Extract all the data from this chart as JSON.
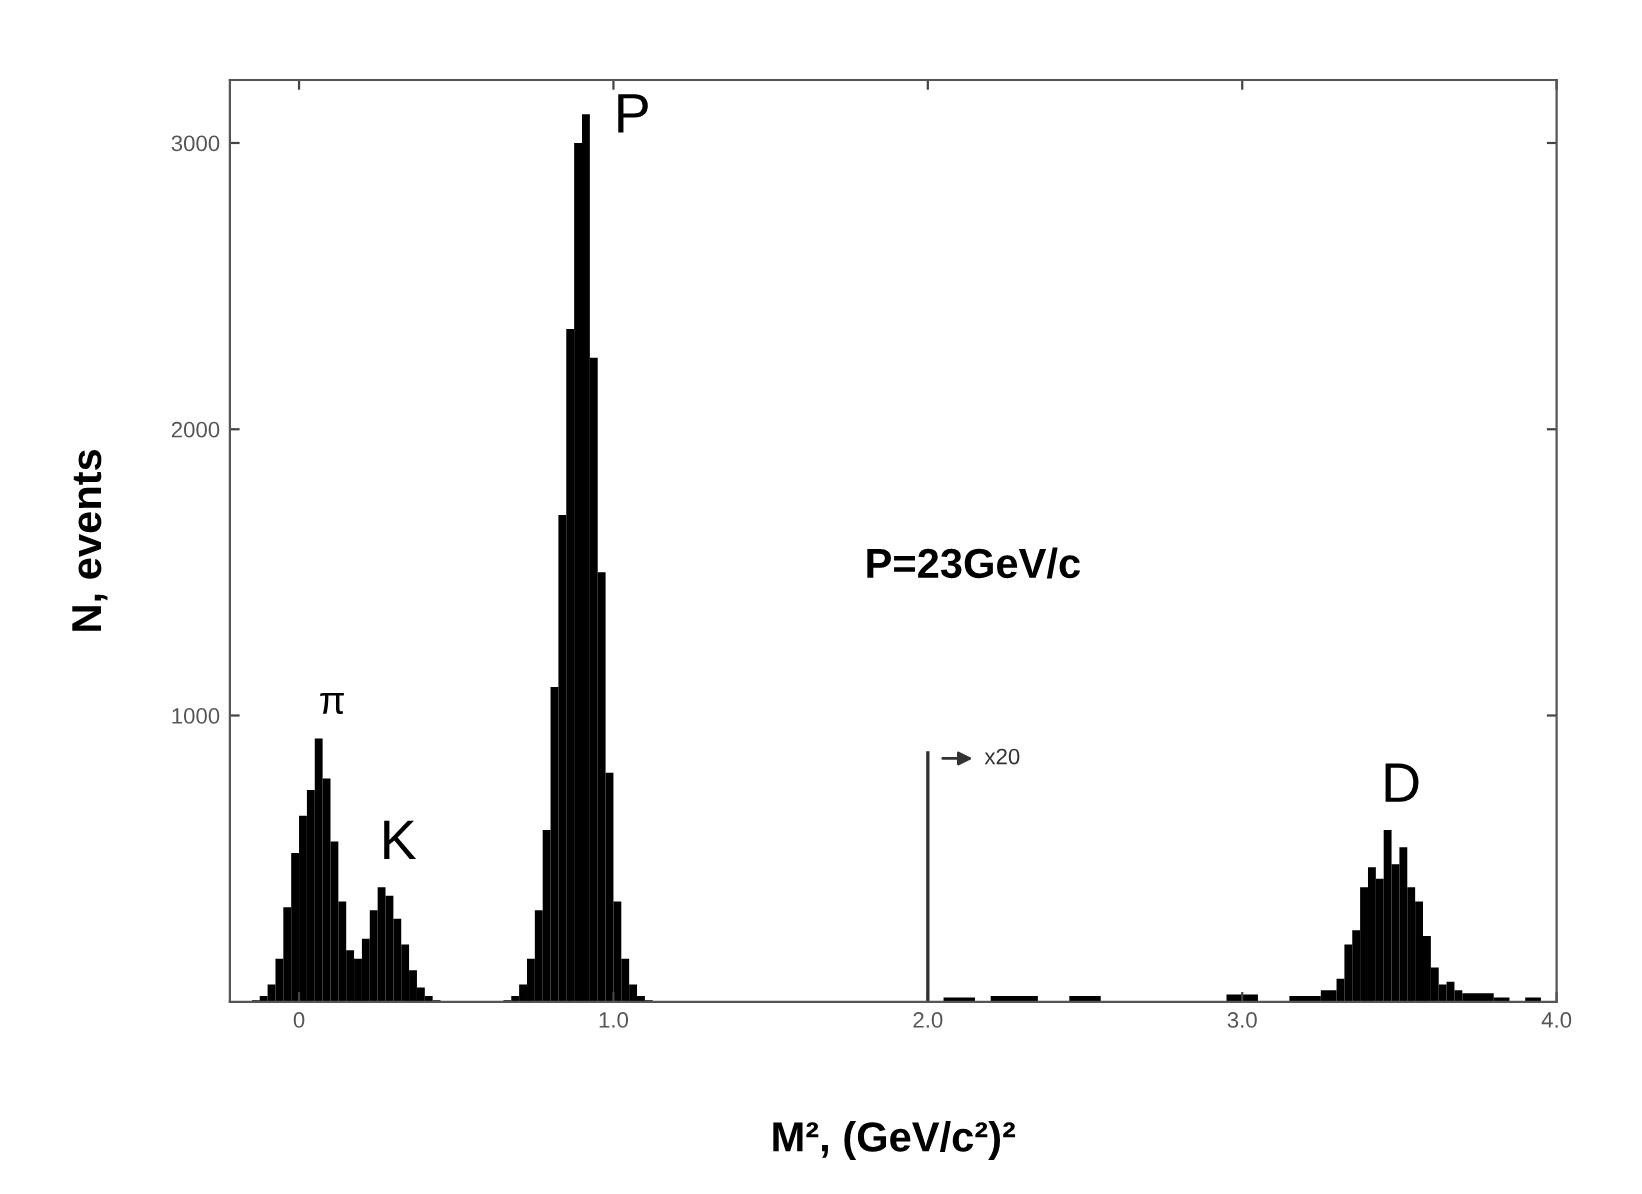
{
  "chart_data": {
    "type": "histogram",
    "xlabel": "M², (GeV/c²)²",
    "ylabel": "N, events",
    "color": "#000000",
    "bins": [
      -0.15,
      -0.125,
      -0.1,
      -0.075,
      -0.05,
      -0.025,
      0,
      0.025,
      0.05,
      0.075,
      0.1,
      0.125,
      0.15,
      0.175,
      0.2,
      0.225,
      0.25,
      0.275,
      0.3,
      0.325,
      0.35,
      0.375,
      0.4,
      0.425,
      0.45,
      0.65,
      0.675,
      0.7,
      0.725,
      0.75,
      0.775,
      0.8,
      0.825,
      0.85,
      0.875,
      0.9,
      0.925,
      0.95,
      0.975,
      1.0,
      1.025,
      1.05,
      1.075,
      1.1,
      1.125,
      2.05,
      2.15,
      2.2,
      2.35,
      2.45,
      2.55,
      2.95,
      3.05,
      3.15,
      3.25,
      3.3,
      3.325,
      3.35,
      3.375,
      3.4,
      3.425,
      3.45,
      3.475,
      3.5,
      3.525,
      3.55,
      3.575,
      3.6,
      3.625,
      3.65,
      3.675,
      3.7,
      3.8,
      3.85,
      3.9,
      3.95
    ],
    "values": [
      5,
      20,
      60,
      150,
      330,
      520,
      650,
      740,
      920,
      780,
      560,
      350,
      180,
      150,
      220,
      320,
      400,
      370,
      290,
      200,
      110,
      50,
      20,
      5,
      0,
      5,
      20,
      60,
      150,
      320,
      600,
      1100,
      1700,
      2350,
      3000,
      3100,
      2250,
      1500,
      800,
      350,
      150,
      60,
      20,
      5,
      0,
      15,
      0,
      20,
      0,
      20,
      0,
      25,
      0,
      20,
      40,
      80,
      200,
      250,
      400,
      470,
      430,
      600,
      480,
      540,
      400,
      350,
      230,
      120,
      60,
      70,
      40,
      30,
      15,
      0,
      15
    ],
    "xlim": [
      -0.22,
      4.0
    ],
    "xticks": [
      0,
      {
        "value": 1,
        "label": "1.0"
      },
      {
        "value": 2,
        "label": "2.0"
      },
      {
        "value": 3,
        "label": "3.0"
      },
      {
        "value": 4,
        "label": "4.0"
      }
    ],
    "ylim": [
      0,
      3220
    ],
    "yticks": [
      1000,
      2000,
      3000
    ],
    "ref_lines": [
      {
        "axis": "x",
        "value": 2.0,
        "label": "x20"
      }
    ],
    "annotations": [
      {
        "text": "P",
        "x": 0.9125,
        "y": 3100
      },
      {
        "text": "π",
        "x": 0.07,
        "y": 920
      },
      {
        "text": "K",
        "x": 0.28,
        "y": 400
      },
      {
        "text": "D",
        "x": 3.47,
        "y": 600
      },
      "P=23GeV/c"
    ],
    "grid": false,
    "legend": false
  }
}
